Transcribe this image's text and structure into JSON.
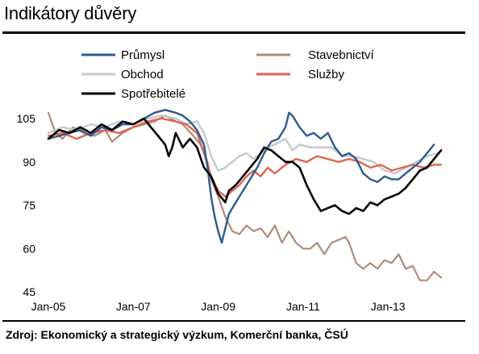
{
  "page": {
    "title": "Indikátory důvěry",
    "source": "Zdroj: Ekonomický a strategický výzkum, Komerční banka, ČSÚ"
  },
  "chart_data": {
    "type": "line",
    "title": "Indikátory důvěry",
    "xlabel": "",
    "ylabel": "",
    "x_ticks": [
      "Jan-05",
      "Jan-07",
      "Jan-09",
      "Jan-11",
      "Jan-13"
    ],
    "y_ticks": [
      45,
      60,
      75,
      90,
      105
    ],
    "ylim": [
      45,
      105
    ],
    "xlim": [
      "2005-01",
      "2014-04"
    ],
    "grid": false,
    "legend_position": "top",
    "series": [
      {
        "name": "Průmysl",
        "color": "#2e5a8e",
        "points": [
          [
            "2005-01",
            98
          ],
          [
            "2005-04",
            99
          ],
          [
            "2005-07",
            100
          ],
          [
            "2005-10",
            101
          ],
          [
            "2006-01",
            99
          ],
          [
            "2006-04",
            102
          ],
          [
            "2006-07",
            101
          ],
          [
            "2006-10",
            103
          ],
          [
            "2007-01",
            103
          ],
          [
            "2007-04",
            105
          ],
          [
            "2007-07",
            107
          ],
          [
            "2007-10",
            108
          ],
          [
            "2008-01",
            107
          ],
          [
            "2008-03",
            106
          ],
          [
            "2008-05",
            104
          ],
          [
            "2008-07",
            101
          ],
          [
            "2008-09",
            96
          ],
          [
            "2008-10",
            88
          ],
          [
            "2008-11",
            78
          ],
          [
            "2008-12",
            71
          ],
          [
            "2009-01",
            66
          ],
          [
            "2009-02",
            62
          ],
          [
            "2009-03",
            67
          ],
          [
            "2009-04",
            72
          ],
          [
            "2009-06",
            76
          ],
          [
            "2009-08",
            80
          ],
          [
            "2009-10",
            84
          ],
          [
            "2009-12",
            88
          ],
          [
            "2010-02",
            93
          ],
          [
            "2010-04",
            97
          ],
          [
            "2010-06",
            98
          ],
          [
            "2010-08",
            102
          ],
          [
            "2010-09",
            107
          ],
          [
            "2010-10",
            106
          ],
          [
            "2010-12",
            102
          ],
          [
            "2011-02",
            99
          ],
          [
            "2011-04",
            100
          ],
          [
            "2011-06",
            98
          ],
          [
            "2011-08",
            100
          ],
          [
            "2011-10",
            95
          ],
          [
            "2011-12",
            92
          ],
          [
            "2012-02",
            93
          ],
          [
            "2012-04",
            91
          ],
          [
            "2012-06",
            86
          ],
          [
            "2012-08",
            84
          ],
          [
            "2012-10",
            83
          ],
          [
            "2012-12",
            85
          ],
          [
            "2013-02",
            84
          ],
          [
            "2013-04",
            84
          ],
          [
            "2013-06",
            86
          ],
          [
            "2013-08",
            88
          ],
          [
            "2013-10",
            90
          ],
          [
            "2013-12",
            93
          ],
          [
            "2014-02",
            96
          ]
        ]
      },
      {
        "name": "Stavebnictví",
        "color": "#b08a7a",
        "points": [
          [
            "2005-01",
            107
          ],
          [
            "2005-03",
            100
          ],
          [
            "2005-05",
            98
          ],
          [
            "2005-08",
            102
          ],
          [
            "2005-11",
            100
          ],
          [
            "2006-02",
            99
          ],
          [
            "2006-05",
            101
          ],
          [
            "2006-07",
            97
          ],
          [
            "2006-10",
            100
          ],
          [
            "2007-01",
            102
          ],
          [
            "2007-04",
            103
          ],
          [
            "2007-07",
            104
          ],
          [
            "2007-10",
            106
          ],
          [
            "2008-01",
            104
          ],
          [
            "2008-03",
            103
          ],
          [
            "2008-06",
            99
          ],
          [
            "2008-08",
            96
          ],
          [
            "2008-10",
            90
          ],
          [
            "2008-11",
            84
          ],
          [
            "2009-01",
            78
          ],
          [
            "2009-03",
            71
          ],
          [
            "2009-05",
            66
          ],
          [
            "2009-07",
            65
          ],
          [
            "2009-09",
            68
          ],
          [
            "2009-11",
            66
          ],
          [
            "2010-01",
            67
          ],
          [
            "2010-03",
            64
          ],
          [
            "2010-05",
            68
          ],
          [
            "2010-07",
            62
          ],
          [
            "2010-09",
            66
          ],
          [
            "2010-11",
            62
          ],
          [
            "2011-01",
            60
          ],
          [
            "2011-03",
            60
          ],
          [
            "2011-05",
            62
          ],
          [
            "2011-07",
            58
          ],
          [
            "2011-09",
            62
          ],
          [
            "2011-11",
            63
          ],
          [
            "2012-01",
            64
          ],
          [
            "2012-02",
            62
          ],
          [
            "2012-04",
            55
          ],
          [
            "2012-06",
            53
          ],
          [
            "2012-08",
            55
          ],
          [
            "2012-10",
            53
          ],
          [
            "2012-12",
            56
          ],
          [
            "2013-02",
            55
          ],
          [
            "2013-04",
            58
          ],
          [
            "2013-06",
            53
          ],
          [
            "2013-08",
            54
          ],
          [
            "2013-10",
            49
          ],
          [
            "2013-12",
            49
          ],
          [
            "2014-02",
            52
          ],
          [
            "2014-04",
            50
          ]
        ]
      },
      {
        "name": "Obchod",
        "color": "#c7c8cc",
        "points": [
          [
            "2005-01",
            100
          ],
          [
            "2005-05",
            102
          ],
          [
            "2005-09",
            101
          ],
          [
            "2006-01",
            103
          ],
          [
            "2006-05",
            102
          ],
          [
            "2006-09",
            104
          ],
          [
            "2007-01",
            103
          ],
          [
            "2007-05",
            105
          ],
          [
            "2007-09",
            106
          ],
          [
            "2008-01",
            105
          ],
          [
            "2008-04",
            103
          ],
          [
            "2008-07",
            104
          ],
          [
            "2008-09",
            100
          ],
          [
            "2008-11",
            92
          ],
          [
            "2009-01",
            87
          ],
          [
            "2009-03",
            88
          ],
          [
            "2009-05",
            90
          ],
          [
            "2009-07",
            92
          ],
          [
            "2009-09",
            93
          ],
          [
            "2009-11",
            91
          ],
          [
            "2010-01",
            93
          ],
          [
            "2010-03",
            95
          ],
          [
            "2010-05",
            96
          ],
          [
            "2010-08",
            98
          ],
          [
            "2010-10",
            94
          ],
          [
            "2010-12",
            96
          ],
          [
            "2011-03",
            95
          ],
          [
            "2011-06",
            95
          ],
          [
            "2011-09",
            95
          ],
          [
            "2011-12",
            92
          ],
          [
            "2012-03",
            92
          ],
          [
            "2012-06",
            91
          ],
          [
            "2012-09",
            90
          ],
          [
            "2012-12",
            87
          ],
          [
            "2013-03",
            86
          ],
          [
            "2013-06",
            88
          ],
          [
            "2013-09",
            90
          ],
          [
            "2013-12",
            92
          ],
          [
            "2014-03",
            93
          ]
        ]
      },
      {
        "name": "Služby",
        "color": "#e0664f",
        "points": [
          [
            "2005-01",
            99
          ],
          [
            "2005-05",
            100
          ],
          [
            "2005-09",
            98
          ],
          [
            "2006-01",
            100
          ],
          [
            "2006-05",
            101
          ],
          [
            "2006-09",
            100
          ],
          [
            "2007-01",
            102
          ],
          [
            "2007-05",
            104
          ],
          [
            "2007-09",
            105
          ],
          [
            "2008-01",
            104
          ],
          [
            "2008-04",
            103
          ],
          [
            "2008-07",
            100
          ],
          [
            "2008-09",
            93
          ],
          [
            "2008-11",
            85
          ],
          [
            "2009-01",
            80
          ],
          [
            "2009-03",
            78
          ],
          [
            "2009-05",
            80
          ],
          [
            "2009-07",
            82
          ],
          [
            "2009-09",
            85
          ],
          [
            "2009-11",
            87
          ],
          [
            "2010-01",
            85
          ],
          [
            "2010-03",
            88
          ],
          [
            "2010-05",
            86
          ],
          [
            "2010-08",
            89
          ],
          [
            "2010-11",
            91
          ],
          [
            "2011-02",
            90
          ],
          [
            "2011-05",
            92
          ],
          [
            "2011-08",
            91
          ],
          [
            "2011-11",
            90
          ],
          [
            "2012-02",
            91
          ],
          [
            "2012-05",
            90
          ],
          [
            "2012-08",
            88
          ],
          [
            "2012-11",
            89
          ],
          [
            "2013-02",
            87
          ],
          [
            "2013-05",
            88
          ],
          [
            "2013-08",
            89
          ],
          [
            "2013-11",
            88
          ],
          [
            "2014-02",
            89
          ],
          [
            "2014-04",
            89
          ]
        ]
      },
      {
        "name": "Spotřebitelé",
        "color": "#000000",
        "points": [
          [
            "2005-01",
            98
          ],
          [
            "2005-04",
            101
          ],
          [
            "2005-07",
            100
          ],
          [
            "2005-10",
            102
          ],
          [
            "2006-01",
            100
          ],
          [
            "2006-04",
            103
          ],
          [
            "2006-07",
            101
          ],
          [
            "2006-10",
            104
          ],
          [
            "2007-01",
            103
          ],
          [
            "2007-04",
            105
          ],
          [
            "2007-06",
            102
          ],
          [
            "2007-08",
            99
          ],
          [
            "2007-10",
            96
          ],
          [
            "2007-11",
            92
          ],
          [
            "2007-12",
            95
          ],
          [
            "2008-01",
            100
          ],
          [
            "2008-03",
            95
          ],
          [
            "2008-05",
            98
          ],
          [
            "2008-07",
            95
          ],
          [
            "2008-09",
            88
          ],
          [
            "2008-11",
            85
          ],
          [
            "2009-01",
            79
          ],
          [
            "2009-03",
            76
          ],
          [
            "2009-04",
            80
          ],
          [
            "2009-06",
            82
          ],
          [
            "2009-08",
            85
          ],
          [
            "2009-10",
            88
          ],
          [
            "2009-12",
            91
          ],
          [
            "2010-02",
            95
          ],
          [
            "2010-04",
            94
          ],
          [
            "2010-06",
            92
          ],
          [
            "2010-08",
            90
          ],
          [
            "2010-10",
            90
          ],
          [
            "2010-12",
            88
          ],
          [
            "2011-02",
            82
          ],
          [
            "2011-04",
            77
          ],
          [
            "2011-06",
            73
          ],
          [
            "2011-08",
            74
          ],
          [
            "2011-10",
            75
          ],
          [
            "2011-12",
            73
          ],
          [
            "2012-02",
            72
          ],
          [
            "2012-04",
            74
          ],
          [
            "2012-06",
            73
          ],
          [
            "2012-08",
            76
          ],
          [
            "2012-10",
            75
          ],
          [
            "2012-12",
            77
          ],
          [
            "2013-02",
            78
          ],
          [
            "2013-04",
            79
          ],
          [
            "2013-06",
            81
          ],
          [
            "2013-08",
            84
          ],
          [
            "2013-10",
            87
          ],
          [
            "2013-12",
            88
          ],
          [
            "2014-02",
            91
          ],
          [
            "2014-04",
            94
          ]
        ]
      }
    ]
  }
}
